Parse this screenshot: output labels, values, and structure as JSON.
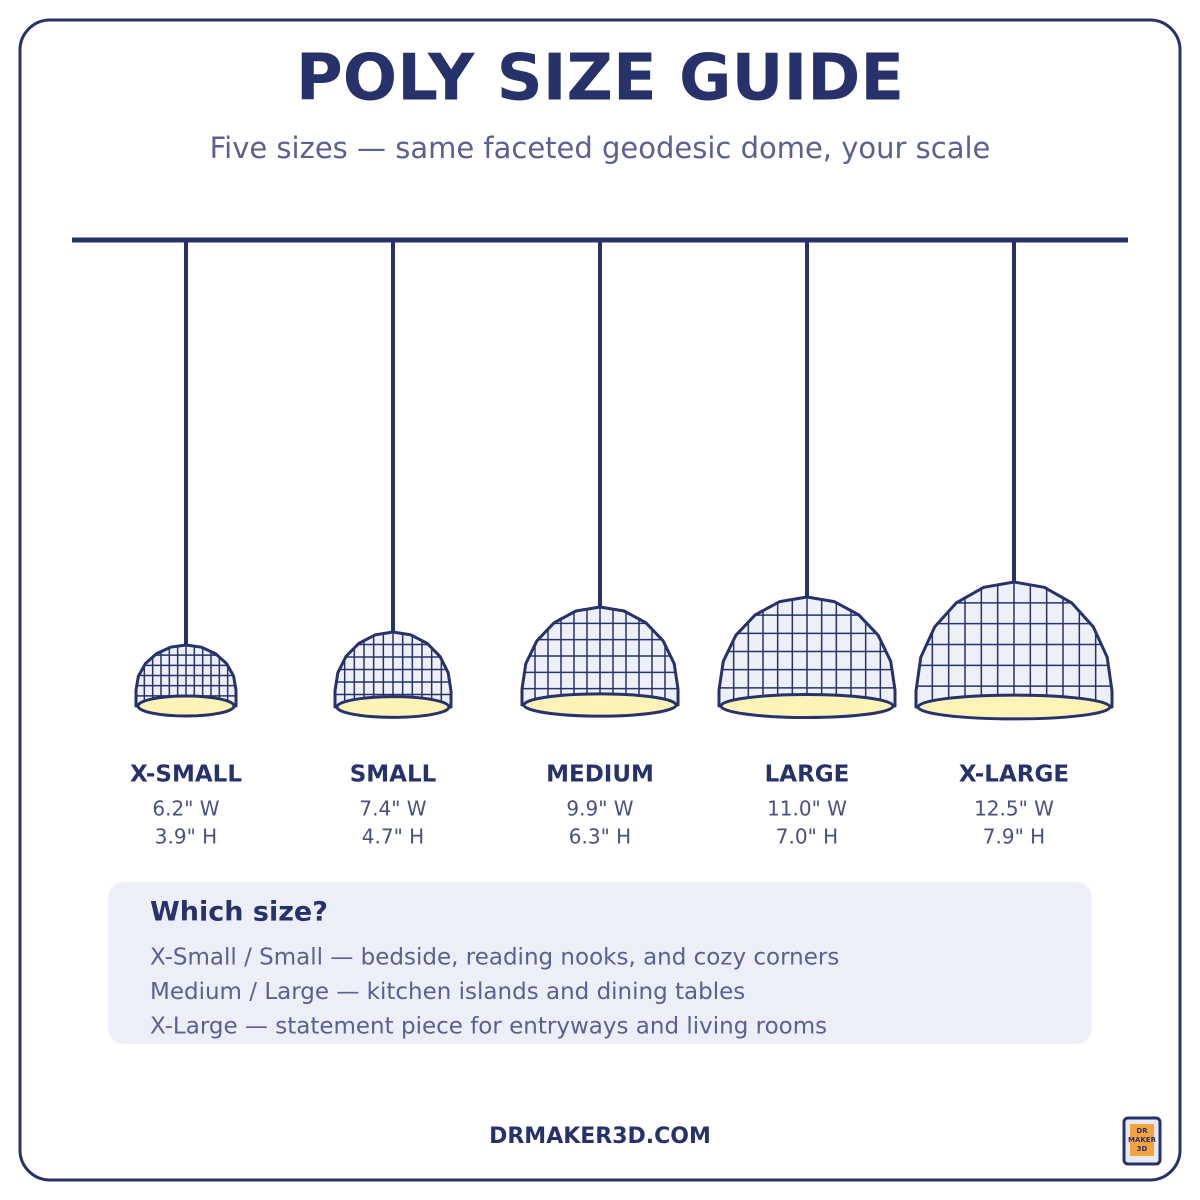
{
  "header": {
    "title": "POLY SIZE GUIDE",
    "subtitle": "Five sizes — same faceted geodesic dome, your scale"
  },
  "sizes": [
    {
      "name": "X-SMALL",
      "width": "6.2\" W",
      "height": "3.9\" H"
    },
    {
      "name": "SMALL",
      "width": "7.4\" W",
      "height": "4.7\" H"
    },
    {
      "name": "MEDIUM",
      "width": "9.9\" W",
      "height": "6.3\" H"
    },
    {
      "name": "LARGE",
      "width": "11.0\" W",
      "height": "7.0\" H"
    },
    {
      "name": "X-LARGE",
      "width": "12.5\" W",
      "height": "7.9\" H"
    }
  ],
  "tips": {
    "heading": "Which size?",
    "lines": [
      "X-Small / Small — bedside, reading nooks, and cozy corners",
      "Medium / Large — kitchen islands and dining tables",
      "X-Large — statement piece for entryways and living rooms"
    ]
  },
  "footer": {
    "url": "DRMAKER3D.COM",
    "logo": [
      "DR",
      "MAKER",
      "3D"
    ]
  }
}
